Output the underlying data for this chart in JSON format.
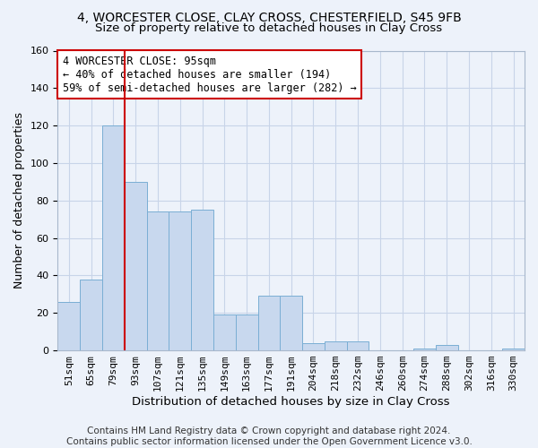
{
  "title": "4, WORCESTER CLOSE, CLAY CROSS, CHESTERFIELD, S45 9FB",
  "subtitle": "Size of property relative to detached houses in Clay Cross",
  "xlabel": "Distribution of detached houses by size in Clay Cross",
  "ylabel": "Number of detached properties",
  "categories": [
    "51sqm",
    "65sqm",
    "79sqm",
    "93sqm",
    "107sqm",
    "121sqm",
    "135sqm",
    "149sqm",
    "163sqm",
    "177sqm",
    "191sqm",
    "204sqm",
    "218sqm",
    "232sqm",
    "246sqm",
    "260sqm",
    "274sqm",
    "288sqm",
    "302sqm",
    "316sqm",
    "330sqm"
  ],
  "bar_values": [
    26,
    38,
    120,
    90,
    74,
    74,
    75,
    19,
    19,
    29,
    29,
    4,
    5,
    5,
    0,
    0,
    1,
    3,
    0,
    0,
    1
  ],
  "bar_color": "#c8d8ee",
  "bar_edge_color": "#7aaed4",
  "grid_color": "#c8d4e8",
  "background_color": "#edf2fa",
  "vline_x": 2.5,
  "vline_color": "#cc0000",
  "annotation_text": "4 WORCESTER CLOSE: 95sqm\n← 40% of detached houses are smaller (194)\n59% of semi-detached houses are larger (282) →",
  "annotation_box_color": "#ffffff",
  "annotation_box_edge": "#cc0000",
  "ylim": [
    0,
    160
  ],
  "yticks": [
    0,
    20,
    40,
    60,
    80,
    100,
    120,
    140,
    160
  ],
  "footer_text": "Contains HM Land Registry data © Crown copyright and database right 2024.\nContains public sector information licensed under the Open Government Licence v3.0.",
  "title_fontsize": 10,
  "subtitle_fontsize": 9.5,
  "xlabel_fontsize": 9.5,
  "ylabel_fontsize": 9,
  "tick_fontsize": 8,
  "annotation_fontsize": 8.5,
  "footer_fontsize": 7.5
}
